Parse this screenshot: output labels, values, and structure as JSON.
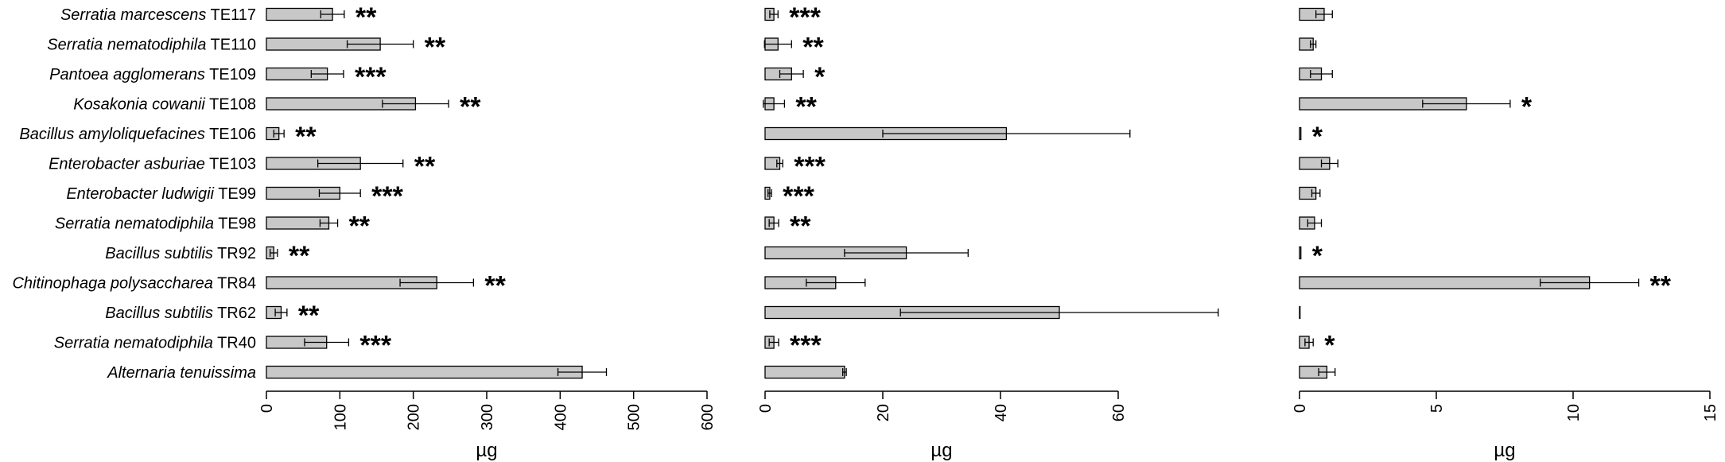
{
  "chart_data": [
    {
      "type": "bar",
      "orientation": "horizontal",
      "categories": [
        {
          "genus": "Serratia marcescens",
          "strain": "TE117"
        },
        {
          "genus": "Serratia nematodiphila",
          "strain": "TE110"
        },
        {
          "genus": "Pantoea agglomerans",
          "strain": "TE109"
        },
        {
          "genus": "Kosakonia cowanii",
          "strain": "TE108"
        },
        {
          "genus": "Bacillus amyloliquefacines",
          "strain": "TE106"
        },
        {
          "genus": "Enterobacter asburiae",
          "strain": "TE103"
        },
        {
          "genus": "Enterobacter ludwigii",
          "strain": "TE99"
        },
        {
          "genus": "Serratia nematodiphila",
          "strain": "TE98"
        },
        {
          "genus": "Bacillus subtilis",
          "strain": "TR92"
        },
        {
          "genus": "Chitinophaga polysaccharea",
          "strain": "TR84"
        },
        {
          "genus": "Bacillus subtilis",
          "strain": "TR62"
        },
        {
          "genus": "Serratia nematodiphila",
          "strain": "TR40"
        },
        {
          "genus": "Alternaria tenuissima",
          "strain": ""
        }
      ],
      "panels": [
        {
          "xlabel": "µg",
          "xlim": [
            0,
            600
          ],
          "xticks": [
            "0",
            "100",
            "200",
            "300",
            "400",
            "500",
            "600"
          ],
          "values": [
            90,
            155,
            83,
            203,
            17,
            128,
            100,
            85,
            10,
            232,
            20,
            82,
            430
          ],
          "errors": [
            16,
            45,
            22,
            45,
            7,
            58,
            28,
            12,
            5,
            50,
            8,
            30,
            33
          ],
          "significance": [
            "**",
            "**",
            "***",
            "**",
            "**",
            "**",
            "***",
            "**",
            "**",
            "**",
            "**",
            "***",
            ""
          ]
        },
        {
          "xlabel": "µg",
          "xlim": [
            0,
            60
          ],
          "xticks": [
            "0",
            "20",
            "40",
            "60"
          ],
          "values": [
            1.5,
            2.2,
            4.5,
            1.5,
            41,
            2.5,
            0.8,
            1.5,
            24,
            12,
            50,
            1.5,
            13.5
          ],
          "errors": [
            0.7,
            2.3,
            2.0,
            1.8,
            21,
            0.5,
            0.3,
            0.8,
            10.5,
            5,
            27,
            0.8,
            0.3
          ],
          "significance": [
            "***",
            "**",
            "*",
            "**",
            "",
            "***",
            "***",
            "**",
            "",
            "",
            "",
            "***",
            ""
          ]
        },
        {
          "xlabel": "µg",
          "xlim": [
            0,
            15
          ],
          "xticks": [
            "0",
            "5",
            "10",
            "15"
          ],
          "values": [
            0.9,
            0.5,
            0.8,
            6.1,
            0.05,
            1.1,
            0.6,
            0.55,
            0.05,
            10.6,
            0.02,
            0.35,
            1.0
          ],
          "errors": [
            0.3,
            0.1,
            0.4,
            1.6,
            0,
            0.3,
            0.15,
            0.25,
            0,
            1.8,
            0,
            0.15,
            0.3
          ],
          "significance": [
            "",
            "",
            "",
            "*",
            "*",
            "",
            "",
            "",
            "*",
            "**",
            "",
            "*",
            ""
          ]
        }
      ]
    }
  ]
}
